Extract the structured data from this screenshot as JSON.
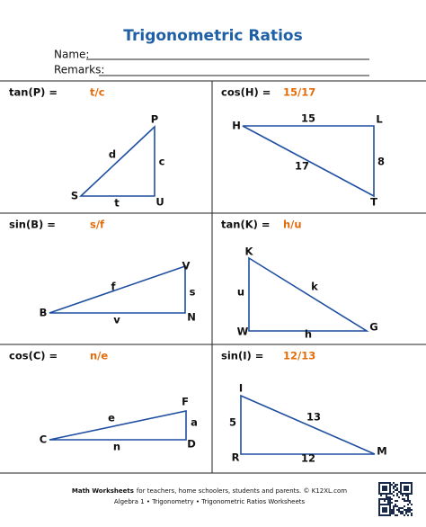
{
  "header": {
    "title": "Trigonometric Ratios",
    "name_label": "Name:",
    "remarks_label": "Remarks:"
  },
  "problems": [
    {
      "question": "tan(P) =",
      "answer": "t/c",
      "labels": [
        "P",
        "S",
        "U",
        "d",
        "c",
        "t"
      ]
    },
    {
      "question": "cos(H) =",
      "answer": "15/17",
      "labels": [
        "H",
        "L",
        "T",
        "15",
        "8",
        "17"
      ]
    },
    {
      "question": "sin(B) =",
      "answer": "s/f",
      "labels": [
        "B",
        "V",
        "N",
        "f",
        "s",
        "v"
      ]
    },
    {
      "question": "tan(K) =",
      "answer": "h/u",
      "labels": [
        "K",
        "W",
        "G",
        "u",
        "k",
        "h"
      ]
    },
    {
      "question": "cos(C) =",
      "answer": "n/e",
      "labels": [
        "C",
        "F",
        "D",
        "e",
        "a",
        "n"
      ]
    },
    {
      "question": "sin(I) =",
      "answer": "12/13",
      "labels": [
        "I",
        "R",
        "M",
        "5",
        "13",
        "12"
      ]
    }
  ],
  "footer": {
    "brand": "Math Worksheets",
    "tagline": "for teachers, home schoolers, students and parents. © K12XL.com",
    "subtitle": "Algebra 1 • Trigonometry • Trigonometric Ratios Worksheets"
  }
}
